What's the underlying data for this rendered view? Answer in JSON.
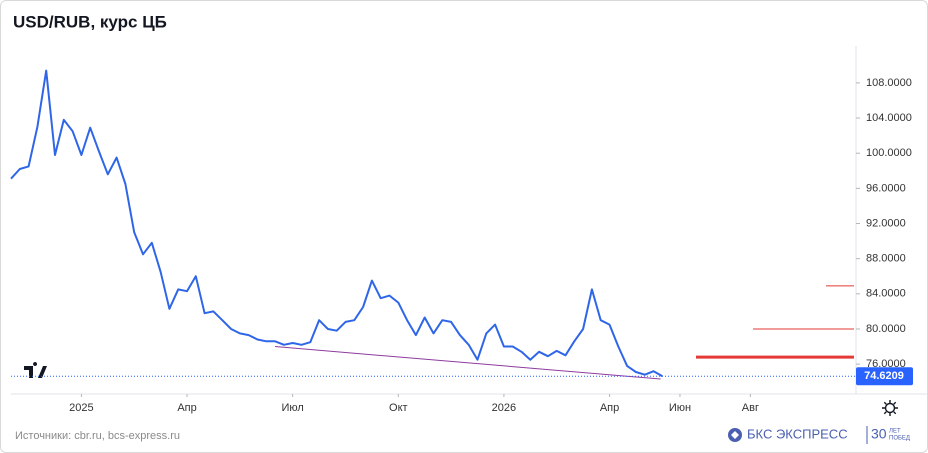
{
  "chart_data": {
    "type": "line",
    "title": "USD/RUB, курс ЦБ",
    "color": "#2f66e8",
    "x": [
      "2024-11",
      "2024-11",
      "2024-11",
      "2024-11",
      "2024-12",
      "2024-12",
      "2024-12",
      "2024-12",
      "2025-01",
      "2025-01",
      "2025-01",
      "2025-01",
      "2025-02",
      "2025-02",
      "2025-02",
      "2025-02",
      "2025-03",
      "2025-03",
      "2025-03",
      "2025-03",
      "2025-04",
      "2025-04",
      "2025-04",
      "2025-04",
      "2025-05",
      "2025-05",
      "2025-05",
      "2025-05",
      "2025-06",
      "2025-06",
      "2025-06",
      "2025-06",
      "2025-07",
      "2025-07",
      "2025-07",
      "2025-07",
      "2025-08",
      "2025-08",
      "2025-08",
      "2025-08",
      "2025-09",
      "2025-09",
      "2025-09",
      "2025-09",
      "2025-10",
      "2025-10",
      "2025-10",
      "2025-10",
      "2025-11",
      "2025-11",
      "2025-11",
      "2025-11",
      "2025-12",
      "2025-12",
      "2025-12",
      "2025-12",
      "2026-01",
      "2026-01",
      "2026-01",
      "2026-01",
      "2026-02",
      "2026-02",
      "2026-02",
      "2026-02",
      "2026-03",
      "2026-03",
      "2026-03",
      "2026-03",
      "2026-04",
      "2026-04",
      "2026-04",
      "2026-04",
      "2026-05",
      "2026-05",
      "2026-05"
    ],
    "values": [
      97.1,
      98.2,
      98.5,
      103.0,
      109.4,
      99.8,
      103.8,
      102.5,
      99.8,
      102.9,
      100.2,
      97.6,
      99.5,
      96.5,
      91.0,
      88.5,
      89.8,
      86.5,
      82.3,
      84.5,
      84.3,
      86.0,
      81.8,
      82.0,
      81.0,
      80.0,
      79.5,
      79.3,
      78.8,
      78.6,
      78.6,
      78.2,
      78.4,
      78.2,
      78.5,
      81.0,
      80.0,
      79.8,
      80.8,
      81.0,
      82.5,
      85.5,
      83.5,
      83.8,
      83.0,
      81.0,
      79.3,
      81.3,
      79.5,
      81.0,
      80.8,
      79.3,
      78.2,
      76.5,
      79.5,
      80.5,
      78.0,
      78.0,
      77.4,
      76.5,
      77.4,
      76.9,
      77.5,
      77.0,
      78.6,
      80.0,
      84.5,
      81.0,
      80.5,
      78.0,
      75.8,
      75.1,
      74.8,
      75.2,
      74.6209
    ],
    "xlim": [
      "2024-11",
      "2026-11"
    ],
    "xticks": [
      {
        "value": "2025-01",
        "label": "2025"
      },
      {
        "value": "2025-04",
        "label": "Апр"
      },
      {
        "value": "2025-07",
        "label": "Июл"
      },
      {
        "value": "2025-10",
        "label": "Окт"
      },
      {
        "value": "2026-01",
        "label": "2026"
      },
      {
        "value": "2026-04",
        "label": "Апр"
      },
      {
        "value": "2026-06",
        "label": "Июн"
      },
      {
        "value": "2026-08",
        "label": "Авг"
      }
    ],
    "ylim": [
      72.6,
      112.2
    ],
    "yticks": [
      {
        "value": 76,
        "label": "76.0000"
      },
      {
        "value": 80,
        "label": "80.0000"
      },
      {
        "value": 84,
        "label": "84.0000"
      },
      {
        "value": 88,
        "label": "88.0000"
      },
      {
        "value": 92,
        "label": "92.0000"
      },
      {
        "value": 96,
        "label": "96.0000"
      },
      {
        "value": 100,
        "label": "100.0000"
      },
      {
        "value": 104,
        "label": "104.0000"
      },
      {
        "value": 108,
        "label": "108.0000"
      }
    ],
    "grid": false,
    "levels": [
      {
        "value": 84.9,
        "color": "#e53935"
      },
      {
        "value": 80.0,
        "color": "#e53935"
      },
      {
        "value": 76.8,
        "color": "#e53935"
      }
    ],
    "trendline": {
      "x": [
        "2025-06",
        "2026-05"
      ],
      "values": [
        78.0,
        74.3
      ],
      "color": "#8e3b9e"
    },
    "last_value_color": "#2962ff"
  },
  "footer": {
    "source": "Источники: cbr.ru, bcs-express.ru",
    "brand": "БКС ЭКСПРЕСС",
    "anniversary": "30",
    "anniversary_text": [
      "ЛЕТ",
      "ПОБЕД"
    ]
  }
}
